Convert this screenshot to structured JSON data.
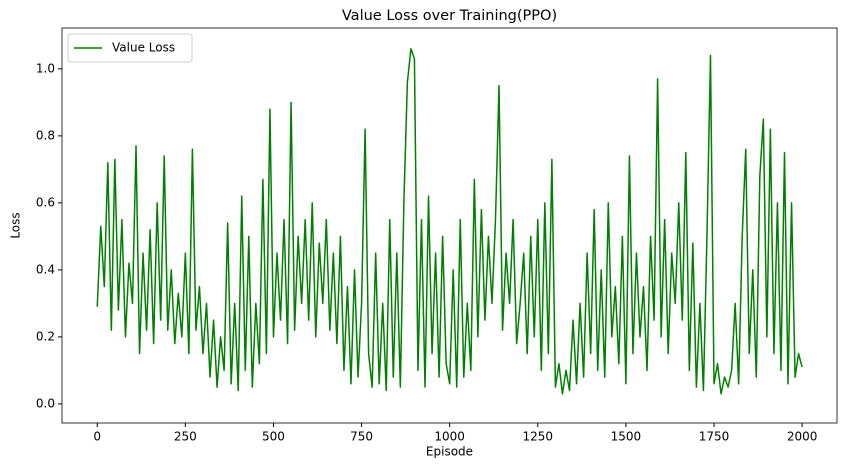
{
  "chart_data": {
    "type": "line",
    "title": "Value Loss over Training(PPO)",
    "xlabel": "Episode",
    "ylabel": "Loss",
    "legend": "upper left",
    "grid": false,
    "xlim": [
      -100,
      2099
    ],
    "ylim": [
      -0.057,
      1.122
    ],
    "xticks": [
      0,
      250,
      500,
      750,
      1000,
      1250,
      1500,
      1750,
      2000
    ],
    "yticks": [
      {
        "value": 0,
        "label": "0.0"
      },
      {
        "value": 0.2,
        "label": "0.2"
      },
      {
        "value": 0.4,
        "label": "0.4"
      },
      {
        "value": 0.6,
        "label": "0.6"
      },
      {
        "value": 0.8,
        "label": "0.8"
      },
      {
        "value": 1,
        "label": "1.0"
      }
    ],
    "x": [
      0,
      10,
      20,
      30,
      40,
      50,
      60,
      70,
      80,
      90,
      100,
      110,
      120,
      130,
      140,
      150,
      160,
      170,
      180,
      190,
      200,
      210,
      220,
      230,
      240,
      250,
      260,
      270,
      280,
      290,
      300,
      310,
      320,
      330,
      340,
      350,
      360,
      370,
      380,
      390,
      400,
      410,
      420,
      430,
      440,
      450,
      460,
      470,
      480,
      490,
      500,
      510,
      520,
      530,
      540,
      550,
      560,
      570,
      580,
      590,
      600,
      610,
      620,
      630,
      640,
      650,
      660,
      670,
      680,
      690,
      700,
      710,
      720,
      730,
      740,
      750,
      760,
      770,
      780,
      790,
      800,
      810,
      820,
      830,
      840,
      850,
      860,
      870,
      880,
      890,
      900,
      910,
      920,
      930,
      940,
      950,
      960,
      970,
      980,
      990,
      1000,
      1010,
      1020,
      1030,
      1040,
      1050,
      1060,
      1070,
      1080,
      1090,
      1100,
      1110,
      1120,
      1130,
      1140,
      1150,
      1160,
      1170,
      1180,
      1190,
      1200,
      1210,
      1220,
      1230,
      1240,
      1250,
      1260,
      1270,
      1280,
      1290,
      1300,
      1310,
      1320,
      1330,
      1340,
      1350,
      1360,
      1370,
      1380,
      1390,
      1400,
      1410,
      1420,
      1430,
      1440,
      1450,
      1460,
      1470,
      1480,
      1490,
      1500,
      1510,
      1520,
      1530,
      1540,
      1550,
      1560,
      1570,
      1580,
      1590,
      1600,
      1610,
      1620,
      1630,
      1640,
      1650,
      1660,
      1670,
      1680,
      1690,
      1700,
      1710,
      1720,
      1730,
      1740,
      1750,
      1760,
      1770,
      1780,
      1790,
      1800,
      1810,
      1820,
      1830,
      1840,
      1850,
      1860,
      1870,
      1880,
      1890,
      1900,
      1910,
      1920,
      1930,
      1940,
      1950,
      1960,
      1970,
      1980,
      1990,
      2000
    ],
    "series": [
      {
        "name": "Value Loss",
        "color": "#008000",
        "values": [
          0.29,
          0.53,
          0.35,
          0.72,
          0.22,
          0.73,
          0.28,
          0.55,
          0.2,
          0.42,
          0.3,
          0.77,
          0.15,
          0.45,
          0.22,
          0.52,
          0.18,
          0.6,
          0.25,
          0.74,
          0.22,
          0.4,
          0.18,
          0.33,
          0.2,
          0.45,
          0.15,
          0.76,
          0.22,
          0.35,
          0.15,
          0.3,
          0.08,
          0.25,
          0.05,
          0.2,
          0.1,
          0.54,
          0.06,
          0.3,
          0.04,
          0.62,
          0.1,
          0.5,
          0.05,
          0.3,
          0.12,
          0.67,
          0.15,
          0.88,
          0.2,
          0.45,
          0.25,
          0.55,
          0.18,
          0.9,
          0.22,
          0.5,
          0.3,
          0.55,
          0.25,
          0.6,
          0.2,
          0.48,
          0.3,
          0.55,
          0.22,
          0.45,
          0.18,
          0.5,
          0.1,
          0.35,
          0.06,
          0.4,
          0.08,
          0.3,
          0.82,
          0.15,
          0.05,
          0.45,
          0.06,
          0.3,
          0.04,
          0.55,
          0.08,
          0.45,
          0.05,
          0.6,
          0.96,
          1.06,
          1.03,
          0.1,
          0.55,
          0.05,
          0.62,
          0.15,
          0.45,
          0.08,
          0.5,
          0.12,
          0.06,
          0.4,
          0.05,
          0.55,
          0.08,
          0.3,
          0.1,
          0.67,
          0.2,
          0.58,
          0.25,
          0.5,
          0.3,
          0.55,
          0.95,
          0.22,
          0.45,
          0.3,
          0.55,
          0.18,
          0.3,
          0.45,
          0.15,
          0.5,
          0.2,
          0.55,
          0.1,
          0.6,
          0.15,
          0.73,
          0.05,
          0.12,
          0.03,
          0.1,
          0.04,
          0.25,
          0.06,
          0.3,
          0.08,
          0.45,
          0.15,
          0.58,
          0.1,
          0.4,
          0.08,
          0.6,
          0.2,
          0.35,
          0.12,
          0.5,
          0.06,
          0.74,
          0.15,
          0.45,
          0.2,
          0.35,
          0.1,
          0.5,
          0.25,
          0.97,
          0.2,
          0.55,
          0.15,
          0.45,
          0.3,
          0.6,
          0.25,
          0.75,
          0.1,
          0.48,
          0.05,
          0.3,
          0.04,
          0.5,
          1.04,
          0.06,
          0.12,
          0.03,
          0.08,
          0.05,
          0.1,
          0.3,
          0.06,
          0.5,
          0.76,
          0.15,
          0.4,
          0.08,
          0.68,
          0.85,
          0.2,
          0.82,
          0.15,
          0.6,
          0.1,
          0.75,
          0.06,
          0.6,
          0.08,
          0.15,
          0.11
        ]
      }
    ]
  }
}
